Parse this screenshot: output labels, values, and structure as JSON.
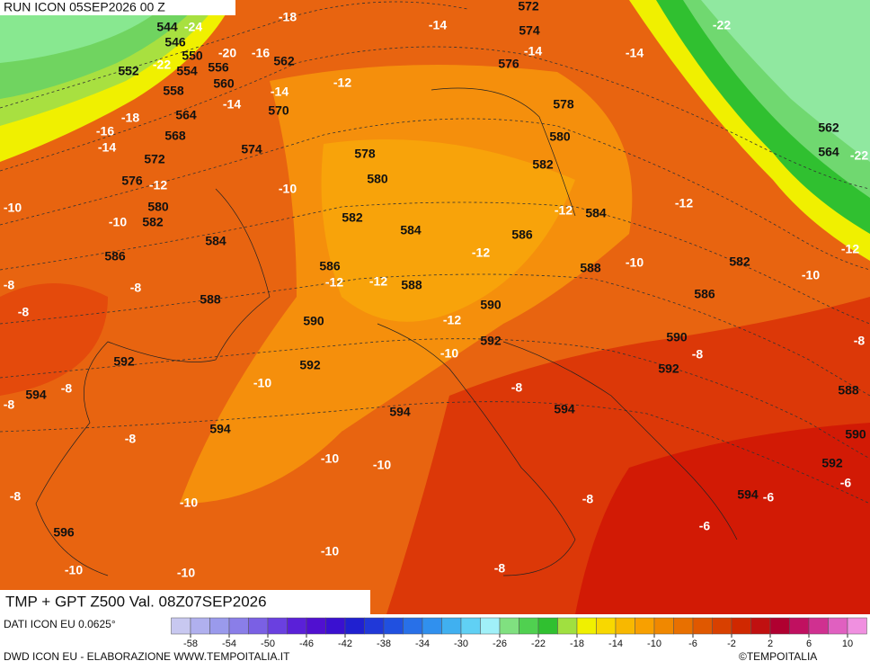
{
  "map": {
    "header": "RUN ICON 05SEP2026 00 Z",
    "footer_title": "TMP + GPT Z500 Val. 08Z07SEP2026",
    "source": "DATI ICON EU 0.0625°",
    "credit": "DWD ICON EU - ELABORAZIONE WWW.TEMPOITALIA.IT",
    "copyright": "©TEMPOITALIA",
    "height_labels": [
      544,
      546,
      550,
      552,
      554,
      556,
      558,
      560,
      562,
      564,
      568,
      570,
      572,
      572,
      574,
      574,
      576,
      576,
      578,
      578,
      580,
      580,
      580,
      582,
      582,
      582,
      582,
      584,
      584,
      584,
      586,
      586,
      586,
      586,
      588,
      588,
      588,
      588,
      590,
      590,
      590,
      590,
      592,
      592,
      592,
      592,
      592,
      594,
      594,
      594,
      594,
      594,
      596,
      562,
      564
    ],
    "temp_labels": [
      -24,
      -22,
      -22,
      -22,
      -20,
      -18,
      -18,
      -16,
      -16,
      -14,
      -14,
      -14,
      -14,
      -14,
      -14,
      -12,
      -12,
      -12,
      -12,
      -12,
      -12,
      -12,
      -12,
      -12,
      -10,
      -10,
      -10,
      -10,
      -10,
      -10,
      -10,
      -10,
      -10,
      -10,
      -10,
      -10,
      -10,
      -8,
      -8,
      -8,
      -8,
      -8,
      -8,
      -8,
      -8,
      -8,
      -8,
      -8,
      -8,
      -6,
      -6,
      -6
    ],
    "colorbar": {
      "ticks": [
        -58,
        -54,
        -50,
        -46,
        -42,
        -38,
        -34,
        -30,
        -26,
        -22,
        -18,
        -14,
        -10,
        -6,
        -2,
        2,
        6,
        10
      ],
      "colors": [
        "#c8c8f0",
        "#b0b0ee",
        "#9a9aec",
        "#8a7ee8",
        "#7a60e4",
        "#6a40e0",
        "#5a20d8",
        "#5010d0",
        "#3a10d0",
        "#2020d0",
        "#2038d8",
        "#2050e0",
        "#2870e8",
        "#3090ee",
        "#40b0f0",
        "#60d0f4",
        "#a0f0f8",
        "#80e080",
        "#50d050",
        "#30c030",
        "#a0e040",
        "#f0f000",
        "#f8d800",
        "#f8b800",
        "#f8a000",
        "#f08800",
        "#e87000",
        "#e05800",
        "#d84000",
        "#d02800",
        "#c01010",
        "#b00030",
        "#c01060",
        "#d03090",
        "#e060c0",
        "#f090e0"
      ]
    }
  }
}
